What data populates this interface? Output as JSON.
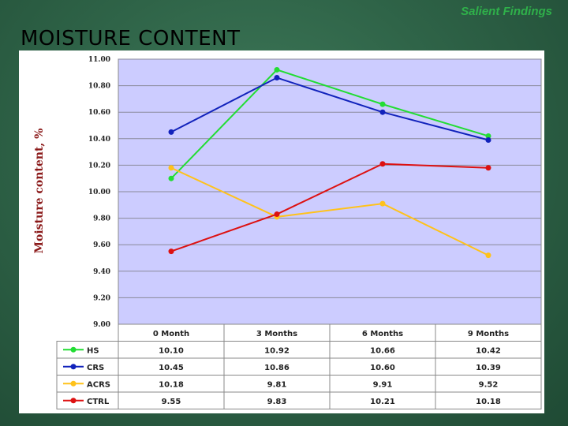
{
  "header": {
    "tag": "Salient Findings",
    "title": "MOISTURE CONTENT"
  },
  "chart_data": {
    "type": "line",
    "title": "MOISTURE CONTENT",
    "ylabel": "Moisture content, %",
    "xlabel": "",
    "categories": [
      "0 Month",
      "3 Months",
      "6 Months",
      "9 Months"
    ],
    "ylim": [
      9.0,
      11.0
    ],
    "yticks": [
      "11.00",
      "10.80",
      "10.60",
      "10.40",
      "10.20",
      "10.00",
      "9.80",
      "9.60",
      "9.40",
      "9.20",
      "9.00"
    ],
    "grid": true,
    "legend": "data-table-below",
    "plot_background": "#ccccff",
    "series": [
      {
        "name": "HS",
        "color": "#22dd33",
        "values": [
          10.1,
          10.92,
          10.66,
          10.42
        ],
        "labels": [
          "10.10",
          "10.92",
          "10.66",
          "10.42"
        ]
      },
      {
        "name": "CRS",
        "color": "#1122bb",
        "values": [
          10.45,
          10.86,
          10.6,
          10.39
        ],
        "labels": [
          "10.45",
          "10.86",
          "10.60",
          "10.39"
        ]
      },
      {
        "name": "ACRS",
        "color": "#ffc21a",
        "values": [
          10.18,
          9.81,
          9.91,
          9.52
        ],
        "labels": [
          "10.18",
          "9.81",
          "9.91",
          "9.52"
        ]
      },
      {
        "name": "CTRL",
        "color": "#dd1111",
        "values": [
          9.55,
          9.83,
          10.21,
          10.18
        ],
        "labels": [
          "9.55",
          "9.83",
          "10.21",
          "10.18"
        ]
      }
    ]
  }
}
